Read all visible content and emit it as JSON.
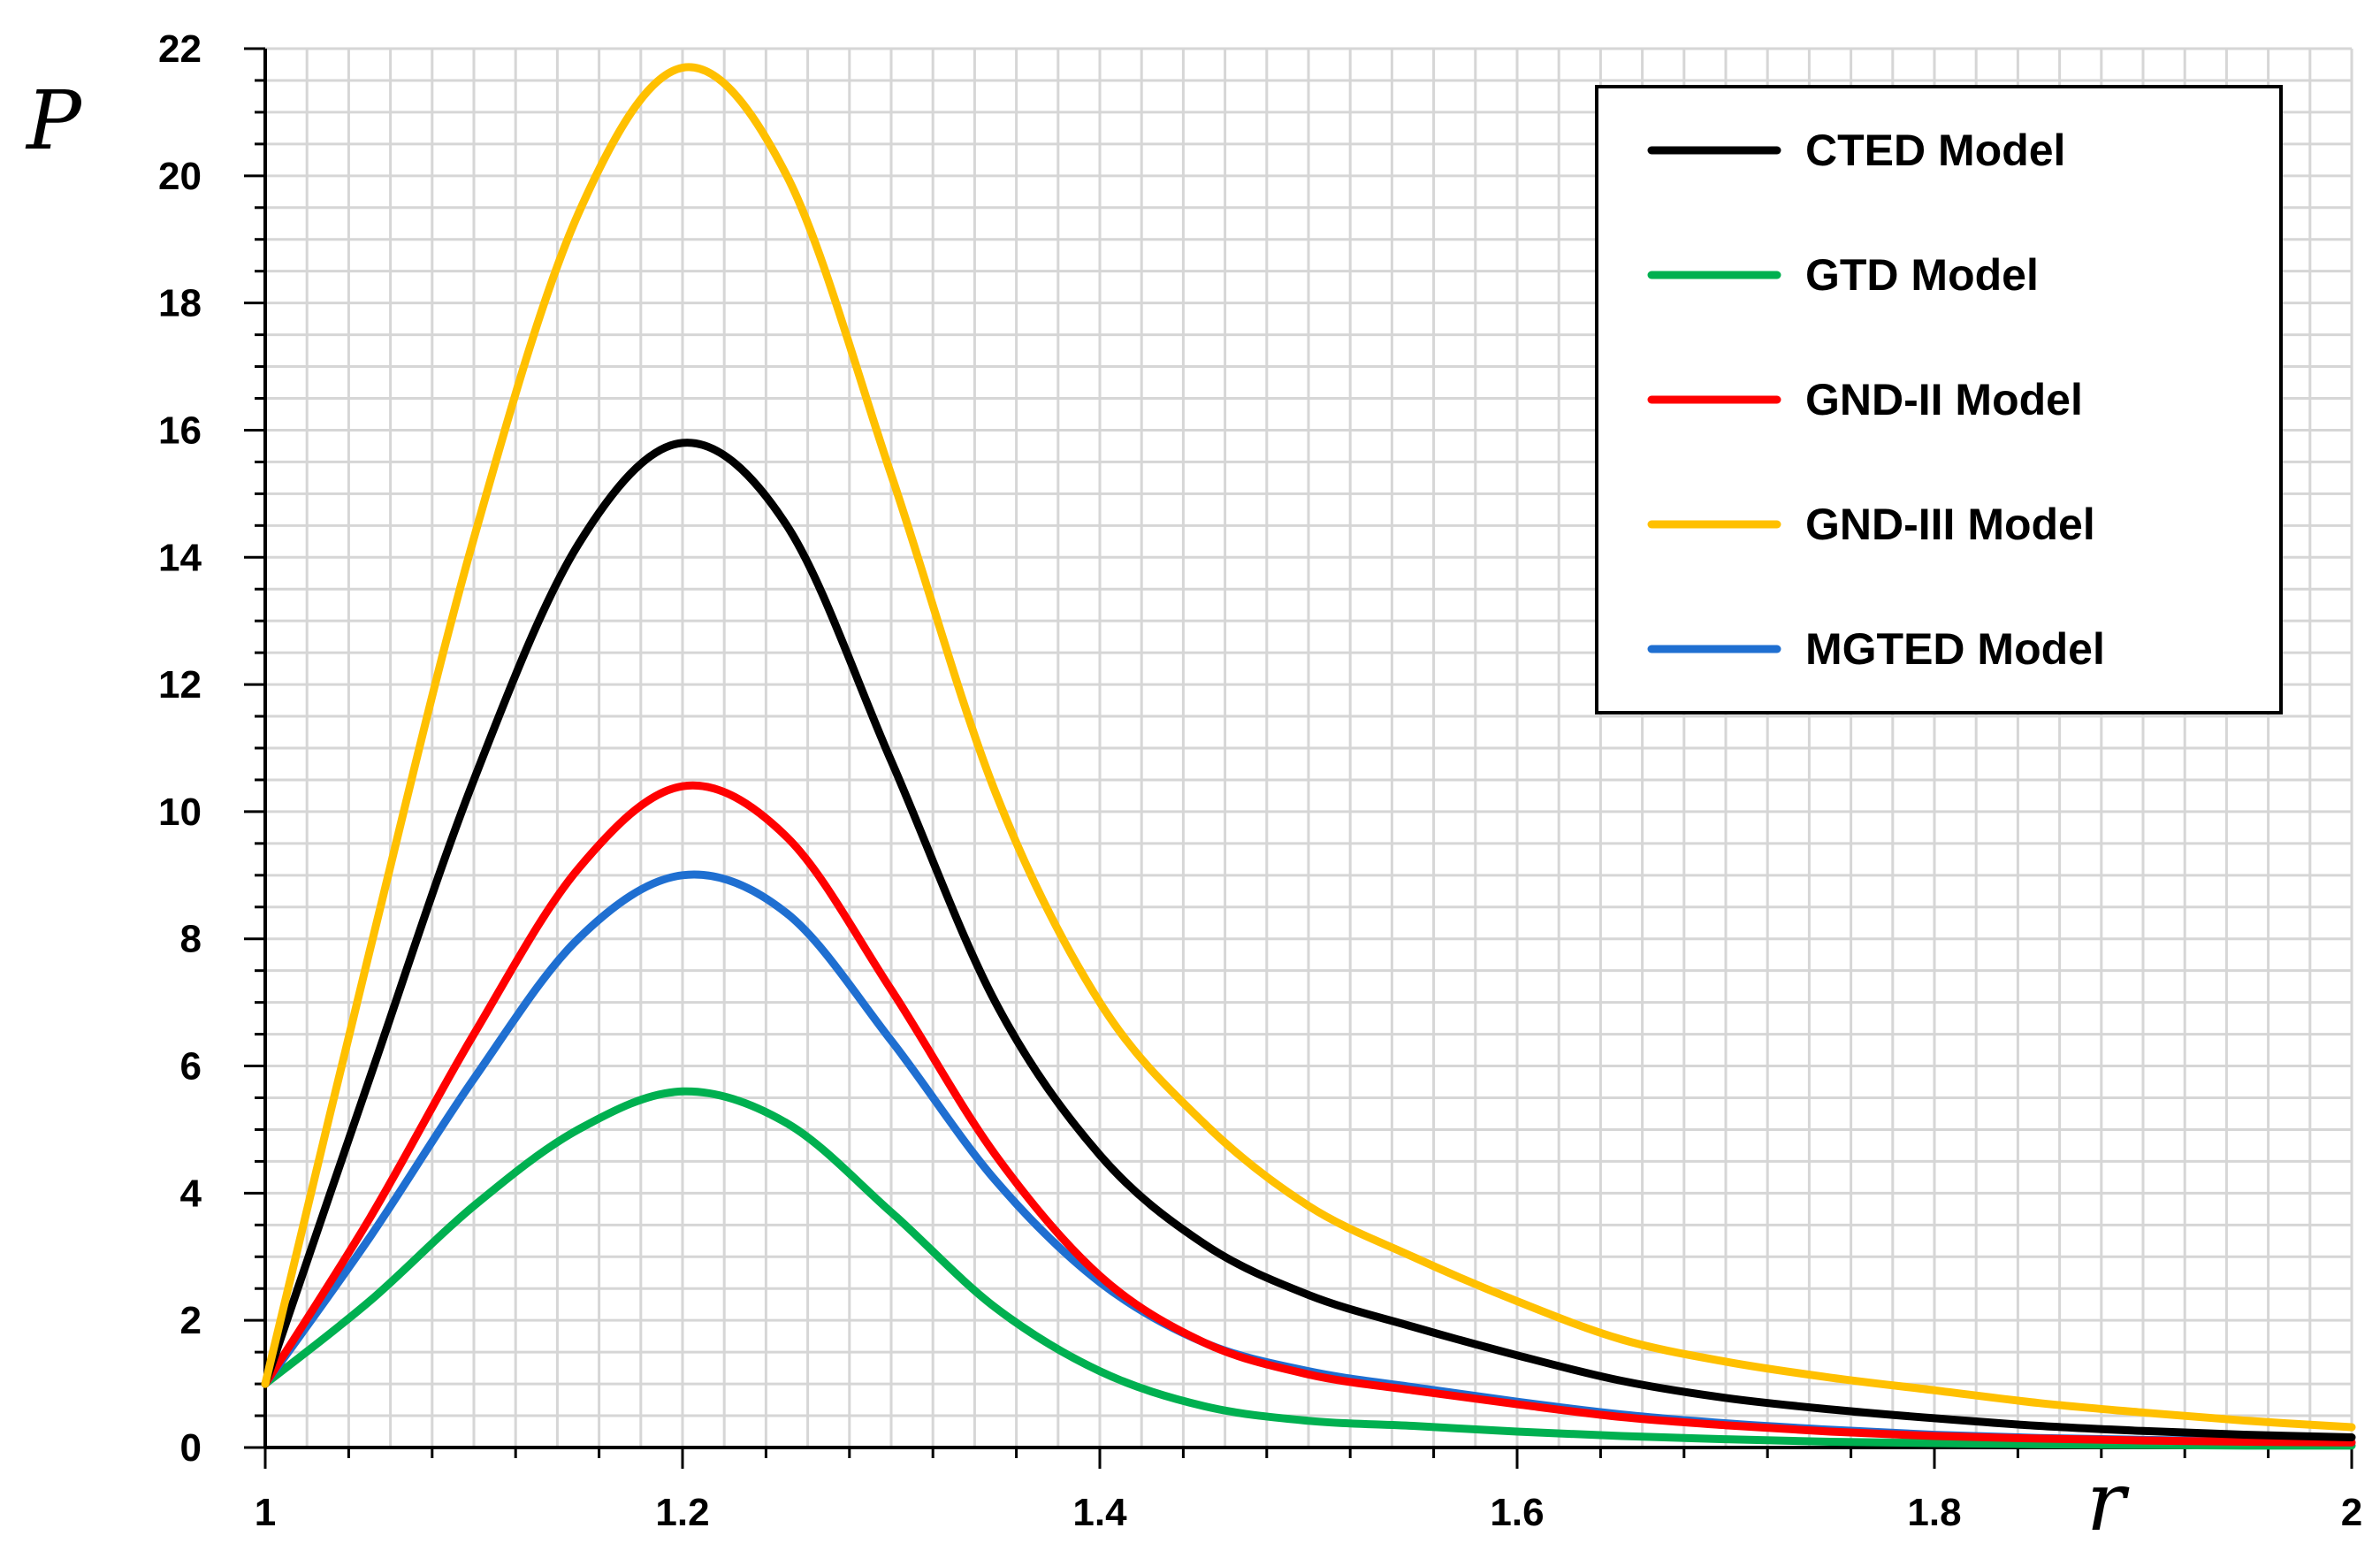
{
  "chart_data": {
    "type": "line",
    "title": "",
    "xlabel": "r",
    "ylabel": "P",
    "xlim": [
      1,
      2
    ],
    "ylim": [
      0,
      22
    ],
    "grid": true,
    "legend_position": "top-right",
    "x_ticks": [
      "1",
      "1.2",
      "1.4",
      "1.6",
      "1.8",
      "2"
    ],
    "y_ticks": [
      "0",
      "2",
      "4",
      "6",
      "8",
      "10",
      "12",
      "14",
      "16",
      "18",
      "20",
      "22"
    ],
    "x_tick_values": [
      1,
      1.2,
      1.4,
      1.6,
      1.8,
      2
    ],
    "y_tick_values": [
      0,
      2,
      4,
      6,
      8,
      10,
      12,
      14,
      16,
      18,
      20,
      22
    ],
    "series": [
      {
        "name": "CTED Model",
        "color": "#000000",
        "x": [
          1.0,
          1.05,
          1.1,
          1.15,
          1.2,
          1.25,
          1.3,
          1.35,
          1.4,
          1.45,
          1.5,
          1.55,
          1.6,
          1.65,
          1.7,
          1.75,
          1.8,
          1.85,
          1.9,
          1.95,
          2.0
        ],
        "y": [
          1.0,
          5.8,
          10.5,
          14.2,
          15.8,
          14.5,
          10.8,
          7.0,
          4.6,
          3.2,
          2.4,
          1.9,
          1.45,
          1.05,
          0.78,
          0.6,
          0.46,
          0.34,
          0.26,
          0.2,
          0.16
        ]
      },
      {
        "name": "GTD Model",
        "color": "#00b050",
        "x": [
          1.0,
          1.05,
          1.1,
          1.15,
          1.2,
          1.25,
          1.3,
          1.35,
          1.4,
          1.45,
          1.5,
          1.55,
          1.6,
          1.65,
          1.7,
          1.75,
          1.8,
          1.85,
          1.9,
          1.95,
          2.0
        ],
        "y": [
          1.0,
          2.3,
          3.8,
          5.0,
          5.6,
          5.1,
          3.7,
          2.2,
          1.2,
          0.65,
          0.42,
          0.34,
          0.25,
          0.18,
          0.13,
          0.09,
          0.07,
          0.05,
          0.04,
          0.03,
          0.03
        ]
      },
      {
        "name": "GND-II Model",
        "color": "#ff0000",
        "x": [
          1.0,
          1.05,
          1.1,
          1.15,
          1.2,
          1.25,
          1.3,
          1.35,
          1.4,
          1.45,
          1.5,
          1.55,
          1.6,
          1.65,
          1.7,
          1.75,
          1.8,
          1.85,
          1.9,
          1.95,
          2.0
        ],
        "y": [
          1.0,
          3.6,
          6.5,
          9.1,
          10.4,
          9.6,
          7.2,
          4.6,
          2.7,
          1.65,
          1.15,
          0.9,
          0.68,
          0.48,
          0.35,
          0.25,
          0.18,
          0.14,
          0.11,
          0.09,
          0.08
        ]
      },
      {
        "name": "GND-III Model",
        "color": "#ffc000",
        "x": [
          1.0,
          1.05,
          1.1,
          1.15,
          1.2,
          1.25,
          1.3,
          1.35,
          1.4,
          1.45,
          1.5,
          1.55,
          1.6,
          1.65,
          1.7,
          1.75,
          1.8,
          1.85,
          1.9,
          1.95,
          2.0
        ],
        "y": [
          1.0,
          7.8,
          14.3,
          19.4,
          21.7,
          20.0,
          15.3,
          10.3,
          7.0,
          5.1,
          3.8,
          3.0,
          2.3,
          1.7,
          1.35,
          1.1,
          0.9,
          0.7,
          0.55,
          0.42,
          0.32
        ]
      },
      {
        "name": "MGTED Model",
        "color": "#1f6fd1",
        "x": [
          1.0,
          1.05,
          1.1,
          1.15,
          1.2,
          1.25,
          1.3,
          1.35,
          1.4,
          1.45,
          1.5,
          1.55,
          1.6,
          1.65,
          1.7,
          1.75,
          1.8,
          1.85,
          1.9,
          1.95,
          2.0
        ],
        "y": [
          1.0,
          3.3,
          5.8,
          8.0,
          9.0,
          8.4,
          6.4,
          4.2,
          2.6,
          1.65,
          1.2,
          0.95,
          0.72,
          0.52,
          0.38,
          0.28,
          0.2,
          0.15,
          0.12,
          0.1,
          0.08
        ]
      }
    ]
  }
}
